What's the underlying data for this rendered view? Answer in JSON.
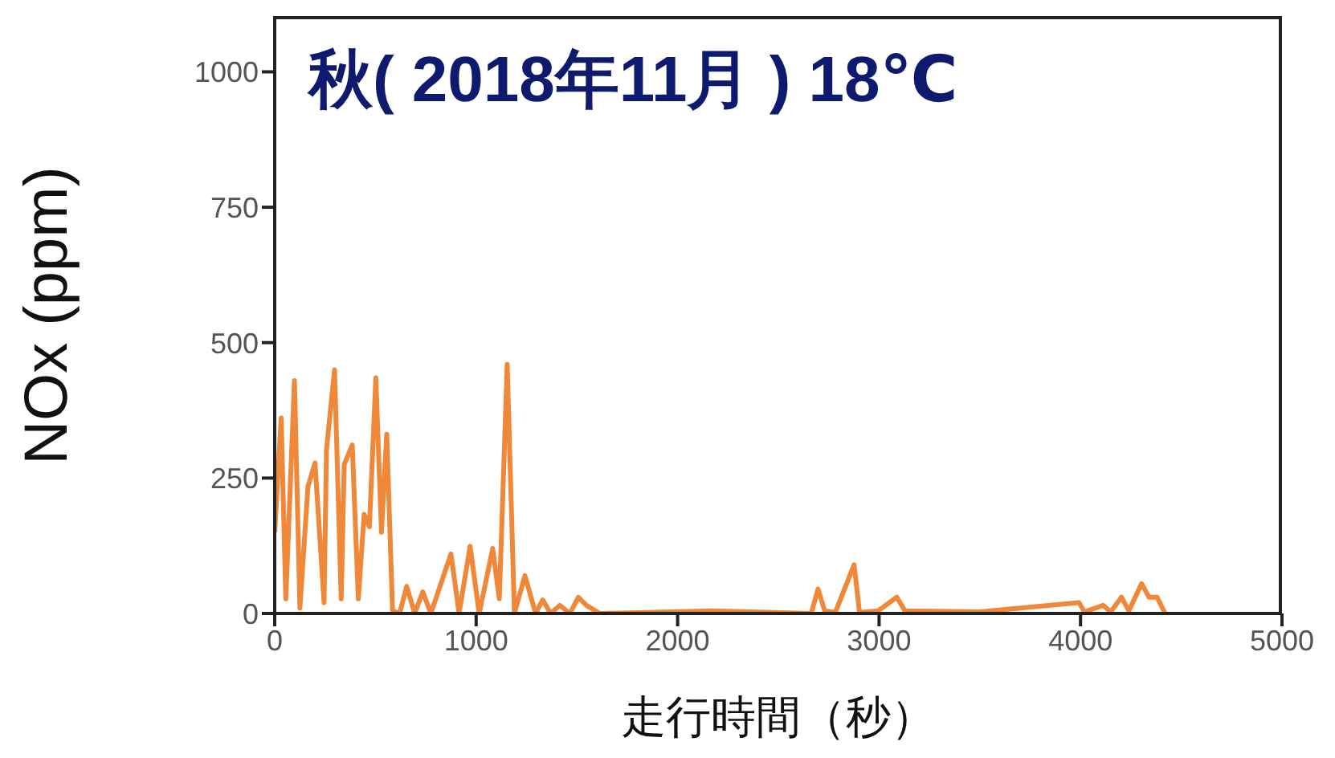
{
  "chart_data": {
    "type": "line",
    "title": "秋( 2018年11月 ) 18℃",
    "xlabel": "走行時間（秒）",
    "ylabel": "NOx (ppm)",
    "xlim": [
      0,
      5000
    ],
    "xticks": [
      0,
      1000,
      2000,
      3000,
      4000,
      5000
    ],
    "ylim": [
      0,
      1100
    ],
    "yticks": [
      0,
      250,
      500,
      750,
      1000
    ],
    "grid": false,
    "marker": "none",
    "line_style": "solid",
    "x": [
      0,
      32,
      55,
      98,
      125,
      165,
      200,
      245,
      257,
      297,
      330,
      345,
      385,
      415,
      444,
      470,
      502,
      530,
      556,
      585,
      620,
      655,
      695,
      735,
      775,
      875,
      915,
      970,
      1015,
      1082,
      1115,
      1154,
      1190,
      1242,
      1295,
      1330,
      1370,
      1415,
      1465,
      1507,
      1547,
      1614,
      2172,
      2663,
      2697,
      2730,
      2783,
      2876,
      2903,
      2996,
      3088,
      3128,
      3500,
      3992,
      4020,
      4112,
      4150,
      4203,
      4240,
      4303,
      4340,
      4380,
      4420
    ],
    "series": [
      {
        "color": "#f0883a",
        "values": [
          150,
          361,
          27,
          430,
          10,
          234,
          278,
          20,
          302,
          450,
          27,
          275,
          311,
          27,
          183,
          160,
          435,
          150,
          331,
          5,
          0,
          50,
          0,
          40,
          0,
          110,
          0,
          124,
          0,
          120,
          27,
          460,
          0,
          70,
          0,
          25,
          0,
          15,
          0,
          30,
          15,
          0,
          5,
          0,
          45,
          5,
          2,
          90,
          2,
          5,
          30,
          5,
          3,
          20,
          3,
          15,
          3,
          30,
          5,
          55,
          30,
          30,
          0
        ]
      }
    ]
  }
}
